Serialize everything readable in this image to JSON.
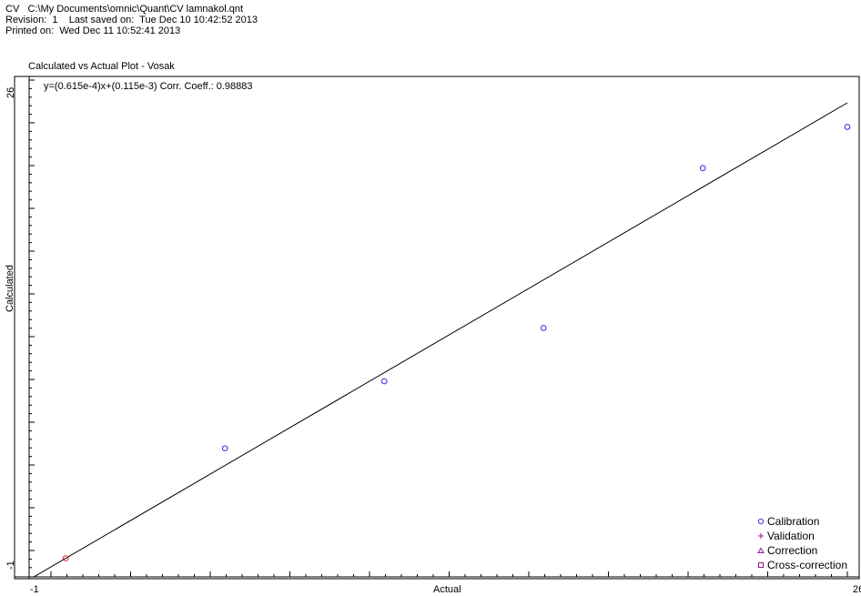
{
  "header": {
    "line1": "CV   C:\\My Documents\\omnic\\Quant\\CV lamnakol.qnt",
    "line2": "Revision:  1    Last saved on:  Tue Dec 10 10:42:52 2013",
    "line3": "Printed on:  Wed Dec 11 10:52:41 2013"
  },
  "colors": {
    "calibration": "#3a3af0",
    "validation": "#8a1a8a",
    "correction": "#8a1a8a",
    "cross_correction": "#8a1a8a",
    "point_red": "#e03030",
    "line": "#000000"
  },
  "chart_data": {
    "type": "scatter",
    "title": "Calculated vs Actual Plot - Vosak",
    "equation": "y=(0.615e-4)x+(0.115e-3) Corr. Coeff.: 0.98883",
    "xlabel": "Actual",
    "ylabel": "Calculated",
    "xlim": [
      -1,
      26
    ],
    "ylim": [
      -1,
      26
    ],
    "x_tick_labels": [
      "-1",
      "26"
    ],
    "y_tick_labels": [
      "-1",
      "26"
    ],
    "legend_position": "bottom-right",
    "legend": [
      "Calibration",
      "Validation",
      "Correction",
      "Cross-correction"
    ],
    "fit_line": {
      "x": [
        -1.6,
        26
      ],
      "y": [
        -1.6,
        26
      ]
    },
    "series": [
      {
        "name": "Calibration",
        "marker": "circle",
        "points": [
          {
            "x": -0.5,
            "y": -0.5,
            "highlight": true
          },
          {
            "x": 4.9,
            "y": 5.9
          },
          {
            "x": 10.3,
            "y": 9.8
          },
          {
            "x": 15.7,
            "y": 12.9
          },
          {
            "x": 21.1,
            "y": 22.2
          },
          {
            "x": 26.0,
            "y": 24.6
          }
        ]
      }
    ]
  }
}
